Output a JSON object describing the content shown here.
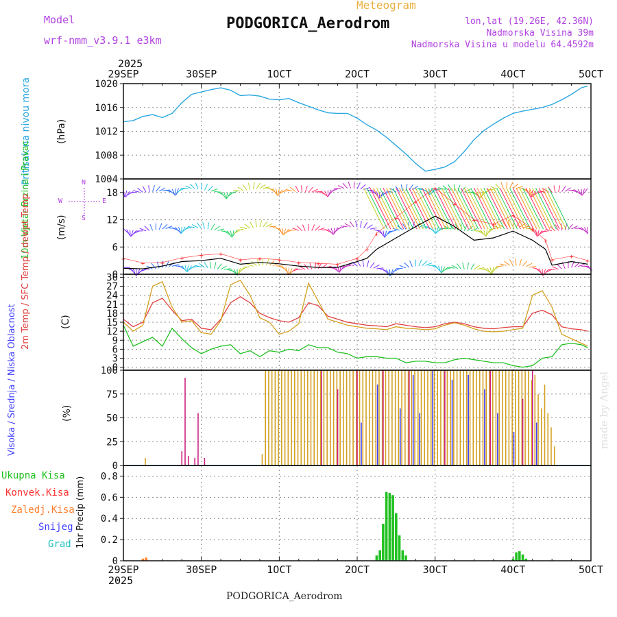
{
  "header": {
    "model_label": "Model",
    "model_name": "wrf-nmm_v3.9.1 e3km",
    "meteogram_label": "Meteogram",
    "station_title": "PODGORICA_Aerodrom",
    "lonlat": "lon,lat (19.26E, 42.36N)",
    "altitude": "Nadmorska Visina 39m",
    "model_altitude": "Nadmorska Visina u modelu 64.4592m",
    "year_top": "2025",
    "year_bottom": "2025",
    "footer_station": "PODGORICA_Aerodrom",
    "made_by": "made by Angel"
  },
  "time_axis": {
    "labels": [
      "29SEP",
      "30SEP",
      "1OCT",
      "2OCT",
      "3OCT",
      "4OCT",
      "5OCT"
    ],
    "hours": 144
  },
  "colors": {
    "pressure": "#2aa7e0",
    "windspeed": "#000000",
    "gust": "#ff3030",
    "temp2m": "#e04040",
    "sfctemp": "#d4a020",
    "dewpoint": "#20c020",
    "cloud_high": "#4040ff",
    "cloud_mid": "#d4a020",
    "cloud_low": "#cc2080",
    "precip_total": "#20c020",
    "precip_conv": "#ff3030",
    "precip_strat": "#ff7f2a",
    "precip_snow": "#4040ff",
    "precip_hail": "#20c0c0",
    "model_text": "#b040e0",
    "meteogram_text": "#e8b040",
    "grid": "#888888"
  },
  "chart_data": [
    {
      "type": "line",
      "title": "Pritisak na nivou mora",
      "ylabel": "(hPa)",
      "ylim": [
        1004,
        1020
      ],
      "yticks": [
        "1004",
        "1008",
        "1012",
        "1016",
        "1020"
      ],
      "series": [
        {
          "name": "Pritisak na nivou mora",
          "x": [
            0,
            3,
            6,
            9,
            12,
            15,
            18,
            21,
            24,
            27,
            30,
            33,
            36,
            39,
            42,
            45,
            48,
            51,
            54,
            57,
            60,
            63,
            66,
            69,
            72,
            75,
            78,
            81,
            84,
            87,
            90,
            93,
            96,
            99,
            102,
            105,
            108,
            111,
            114,
            117,
            120,
            123,
            126,
            129,
            132,
            135,
            138,
            141,
            143
          ],
          "values": [
            1013.6,
            1013.8,
            1014.5,
            1014.8,
            1014.3,
            1015.0,
            1016.8,
            1018.2,
            1018.6,
            1019.0,
            1019.3,
            1018.9,
            1018.0,
            1018.1,
            1017.9,
            1017.4,
            1017.3,
            1017.5,
            1016.8,
            1016.2,
            1015.6,
            1015.1,
            1015.0,
            1015.0,
            1014.2,
            1013.1,
            1012.2,
            1011.0,
            1009.6,
            1008.2,
            1006.6,
            1005.3,
            1005.6,
            1006.0,
            1006.9,
            1008.6,
            1010.6,
            1012.1,
            1013.2,
            1014.2,
            1015.0,
            1015.4,
            1015.7,
            1016.0,
            1016.5,
            1017.3,
            1018.2,
            1019.3,
            1019.6
          ]
        }
      ]
    },
    {
      "type": "line",
      "title": "10m Vjetar Brzina i Pravac",
      "ylabel": "(m/s)",
      "ylim": [
        0,
        21
      ],
      "yticks": [
        "0",
        "6",
        "12",
        "18"
      ],
      "compass": [
        "N",
        "E",
        "W",
        "S"
      ],
      "series": [
        {
          "name": "Brzina vjetra",
          "x": [
            0,
            6,
            12,
            18,
            24,
            30,
            36,
            42,
            48,
            54,
            60,
            66,
            72,
            75,
            78,
            84,
            90,
            96,
            102,
            108,
            114,
            120,
            126,
            130,
            132,
            138,
            143
          ],
          "values": [
            1.3,
            1.2,
            1.8,
            2.8,
            3.0,
            3.5,
            2.2,
            2.6,
            2.3,
            1.8,
            1.5,
            1.5,
            2.8,
            3.5,
            5.5,
            8.0,
            10.5,
            12.8,
            10.5,
            7.5,
            8.0,
            9.5,
            7.5,
            5.5,
            2.0,
            2.8,
            2.2
          ]
        },
        {
          "name": "Udari vjetra",
          "x": [
            0,
            6,
            12,
            18,
            24,
            30,
            36,
            42,
            48,
            54,
            60,
            66,
            72,
            75,
            78,
            84,
            90,
            96,
            102,
            108,
            114,
            120,
            126,
            130,
            132,
            138,
            143
          ],
          "values": [
            3.5,
            2.5,
            2.6,
            3.6,
            4.2,
            4.5,
            3.2,
            3.5,
            3.2,
            2.6,
            2.4,
            2.2,
            3.5,
            5.5,
            9.0,
            12.5,
            16.0,
            19.0,
            15.5,
            12.0,
            11.0,
            13.0,
            10.0,
            7.5,
            3.2,
            4.0,
            3.0
          ]
        }
      ]
    },
    {
      "type": "line",
      "title": "2m Temp / SFC Temp / dewpt Temp",
      "ylabel": "(C)",
      "ylim": [
        -1,
        31
      ],
      "yticks": [
        "0",
        "3",
        "6",
        "9",
        "12",
        "15",
        "18",
        "21",
        "24",
        "27",
        "30"
      ],
      "series": [
        {
          "name": "2m Temp",
          "x": [
            0,
            3,
            6,
            9,
            12,
            15,
            18,
            21,
            24,
            27,
            30,
            33,
            36,
            39,
            42,
            45,
            48,
            51,
            54,
            57,
            60,
            63,
            66,
            69,
            72,
            75,
            78,
            81,
            84,
            87,
            90,
            93,
            96,
            99,
            102,
            105,
            108,
            111,
            114,
            117,
            120,
            123,
            126,
            129,
            132,
            135,
            138,
            141,
            143
          ],
          "values": [
            16.0,
            13.5,
            15.0,
            21.5,
            23.0,
            19.0,
            15.5,
            16.0,
            13.0,
            12.5,
            16.0,
            21.5,
            23.5,
            21.5,
            18.0,
            16.5,
            15.5,
            15.0,
            16.5,
            21.5,
            20.5,
            17.0,
            16.0,
            15.0,
            14.5,
            14.0,
            13.8,
            13.5,
            14.5,
            14.0,
            13.5,
            13.2,
            13.5,
            14.5,
            15.0,
            14.5,
            13.5,
            13.0,
            12.8,
            13.2,
            13.5,
            13.5,
            18.0,
            19.0,
            17.5,
            13.5,
            12.8,
            12.5,
            12.0
          ]
        },
        {
          "name": "SFC Temp",
          "x": [
            0,
            3,
            6,
            9,
            12,
            15,
            18,
            21,
            24,
            27,
            30,
            33,
            36,
            39,
            42,
            45,
            48,
            51,
            54,
            57,
            60,
            63,
            66,
            69,
            72,
            75,
            78,
            81,
            84,
            87,
            90,
            93,
            96,
            99,
            102,
            105,
            108,
            111,
            114,
            117,
            120,
            123,
            126,
            129,
            132,
            135,
            138,
            141,
            143
          ],
          "values": [
            15.0,
            12.0,
            14.0,
            27.0,
            28.5,
            20.0,
            15.0,
            15.5,
            11.5,
            11.0,
            15.5,
            27.5,
            29.0,
            24.0,
            16.5,
            15.0,
            11.0,
            12.0,
            14.5,
            28.0,
            22.0,
            16.0,
            15.0,
            14.0,
            13.5,
            13.0,
            12.8,
            12.5,
            13.5,
            13.0,
            12.8,
            12.5,
            12.8,
            14.0,
            14.8,
            14.0,
            12.8,
            12.0,
            11.8,
            12.0,
            12.5,
            13.0,
            24.0,
            25.5,
            20.0,
            11.0,
            9.5,
            8.0,
            7.0
          ]
        },
        {
          "name": "dewpt Temp",
          "x": [
            0,
            3,
            6,
            9,
            12,
            15,
            18,
            21,
            24,
            27,
            30,
            33,
            36,
            39,
            42,
            45,
            48,
            51,
            54,
            57,
            60,
            63,
            66,
            69,
            72,
            75,
            78,
            81,
            84,
            87,
            90,
            93,
            96,
            99,
            102,
            105,
            108,
            111,
            114,
            117,
            120,
            123,
            126,
            129,
            132,
            135,
            138,
            141,
            143
          ],
          "values": [
            14.0,
            7.0,
            8.5,
            10.0,
            7.0,
            13.0,
            9.5,
            6.5,
            4.5,
            6.0,
            7.0,
            7.5,
            4.5,
            5.5,
            3.5,
            5.5,
            5.0,
            6.0,
            5.5,
            7.5,
            6.5,
            6.5,
            5.0,
            4.5,
            3.0,
            3.5,
            3.5,
            3.0,
            3.0,
            1.5,
            2.0,
            2.0,
            1.5,
            1.5,
            2.5,
            3.0,
            2.5,
            2.0,
            1.5,
            1.5,
            0.5,
            0.0,
            0.5,
            3.0,
            3.5,
            7.5,
            8.0,
            7.5,
            6.5
          ]
        }
      ]
    },
    {
      "type": "bar",
      "title": "Visoka / Srednja / Niska Oblacnost",
      "ylabel": "(%)",
      "ylim": [
        0,
        100
      ],
      "yticks": [
        "0",
        "25",
        "50",
        "75",
        "100"
      ],
      "series": [
        {
          "name": "Visoka Oblacnost",
          "x": [
            73,
            78,
            85,
            89,
            91,
            95,
            101,
            106,
            111,
            115,
            120,
            127
          ],
          "values": [
            45,
            85,
            60,
            95,
            55,
            100,
            90,
            95,
            80,
            55,
            35,
            45
          ]
        },
        {
          "name": "Srednja Oblacnost",
          "x": [
            7,
            43,
            44,
            45,
            46,
            47,
            48,
            49,
            50,
            51,
            52,
            53,
            54,
            55,
            56,
            57,
            58,
            59,
            60,
            61,
            62,
            63,
            64,
            65,
            66,
            67,
            68,
            69,
            70,
            71,
            72,
            73,
            74,
            75,
            76,
            77,
            78,
            79,
            80,
            81,
            82,
            83,
            84,
            85,
            86,
            87,
            88,
            89,
            90,
            91,
            92,
            93,
            94,
            95,
            96,
            97,
            98,
            99,
            100,
            101,
            102,
            103,
            104,
            105,
            106,
            107,
            108,
            109,
            110,
            111,
            112,
            113,
            114,
            115,
            116,
            117,
            118,
            119,
            120,
            121,
            122,
            123,
            124,
            125,
            126,
            127,
            128,
            129,
            130,
            131,
            132,
            133
          ],
          "values": [
            8,
            12,
            100,
            100,
            100,
            100,
            100,
            100,
            100,
            100,
            100,
            100,
            100,
            100,
            100,
            100,
            100,
            100,
            100,
            100,
            100,
            100,
            100,
            100,
            100,
            100,
            100,
            100,
            100,
            100,
            100,
            100,
            100,
            100,
            100,
            100,
            100,
            100,
            100,
            100,
            100,
            100,
            100,
            100,
            100,
            100,
            100,
            100,
            100,
            100,
            100,
            100,
            100,
            100,
            100,
            100,
            100,
            100,
            100,
            100,
            100,
            100,
            100,
            100,
            100,
            100,
            100,
            100,
            100,
            100,
            100,
            100,
            100,
            100,
            100,
            100,
            100,
            100,
            100,
            100,
            100,
            100,
            100,
            100,
            90,
            95,
            75,
            60,
            85,
            55,
            40,
            20
          ]
        },
        {
          "name": "Niska Oblacnost",
          "x": [
            18,
            19,
            20,
            22,
            23,
            25,
            61,
            66,
            72,
            80,
            88,
            99,
            113,
            123,
            126
          ],
          "values": [
            15,
            92,
            10,
            8,
            55,
            8,
            100,
            80,
            100,
            100,
            100,
            100,
            100,
            70,
            100
          ]
        }
      ]
    },
    {
      "type": "bar",
      "title": "1hr Precip",
      "ylabel": "1hr Precip (mm)",
      "ylim": [
        0,
        0.9
      ],
      "yticks": [
        "0",
        "0.2",
        "0.4",
        "0.6",
        "0.8"
      ],
      "legend": [
        "Ukupna Kisa",
        "Konvek.Kisa",
        "Zaledj.Kisa",
        "Snijeg",
        "Grad"
      ],
      "series": [
        {
          "name": "Ukupna Kisa",
          "x": [
            78,
            79,
            80,
            81,
            82,
            83,
            84,
            85,
            86,
            87,
            120,
            121,
            122,
            123,
            124
          ],
          "values": [
            0.05,
            0.1,
            0.35,
            0.65,
            0.64,
            0.62,
            0.45,
            0.24,
            0.1,
            0.05,
            0.02,
            0.08,
            0.09,
            0.06,
            0.02
          ]
        },
        {
          "name": "Zaledj.Kisa",
          "x": [
            6,
            7
          ],
          "values": [
            0.02,
            0.03
          ]
        }
      ]
    }
  ]
}
